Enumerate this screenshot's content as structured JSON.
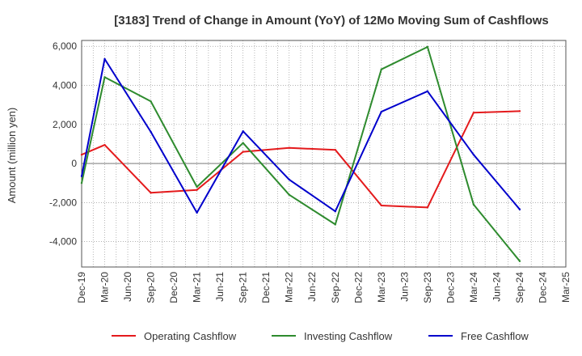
{
  "chart_data": {
    "type": "line",
    "title": "[3183]  Trend of Change in Amount (YoY) of 12Mo Moving Sum of Cashflows",
    "xlabel": "",
    "ylabel": "Amount (million yen)",
    "ylim": [
      -5300,
      6300
    ],
    "yticks": [
      -4000,
      -2000,
      0,
      2000,
      4000,
      6000
    ],
    "ytick_labels": [
      "-4,000",
      "-2,000",
      "0",
      "2,000",
      "4,000",
      "6,000"
    ],
    "categories": [
      "Dec-19",
      "Mar-20",
      "Jun-20",
      "Sep-20",
      "Dec-20",
      "Mar-21",
      "Jun-21",
      "Sep-21",
      "Dec-21",
      "Mar-22",
      "Jun-22",
      "Sep-22",
      "Dec-22",
      "Mar-23",
      "Jun-23",
      "Sep-23",
      "Dec-23",
      "Mar-24",
      "Jun-24",
      "Sep-24",
      "Dec-24",
      "Mar-25"
    ],
    "grid": true,
    "legend_position": "bottom",
    "series": [
      {
        "name": "Operating Cashflow",
        "color": "#e41a1c",
        "values": [
          450,
          950,
          null,
          -1500,
          null,
          -1350,
          null,
          600,
          null,
          800,
          null,
          700,
          null,
          -2150,
          null,
          -2250,
          null,
          2600,
          null,
          2680,
          null,
          null
        ]
      },
      {
        "name": "Investing Cashflow",
        "color": "#2e8b2e",
        "values": [
          -1000,
          4420,
          null,
          3180,
          null,
          -1200,
          null,
          1050,
          null,
          -1600,
          null,
          -3120,
          null,
          4820,
          null,
          5970,
          null,
          -2100,
          null,
          -5000,
          null,
          null
        ]
      },
      {
        "name": "Free Cashflow",
        "color": "#0000cc",
        "values": [
          -650,
          5350,
          null,
          1620,
          null,
          -2520,
          null,
          1650,
          null,
          -820,
          null,
          -2450,
          null,
          2650,
          null,
          3700,
          null,
          450,
          null,
          -2350,
          null,
          null
        ]
      }
    ]
  }
}
